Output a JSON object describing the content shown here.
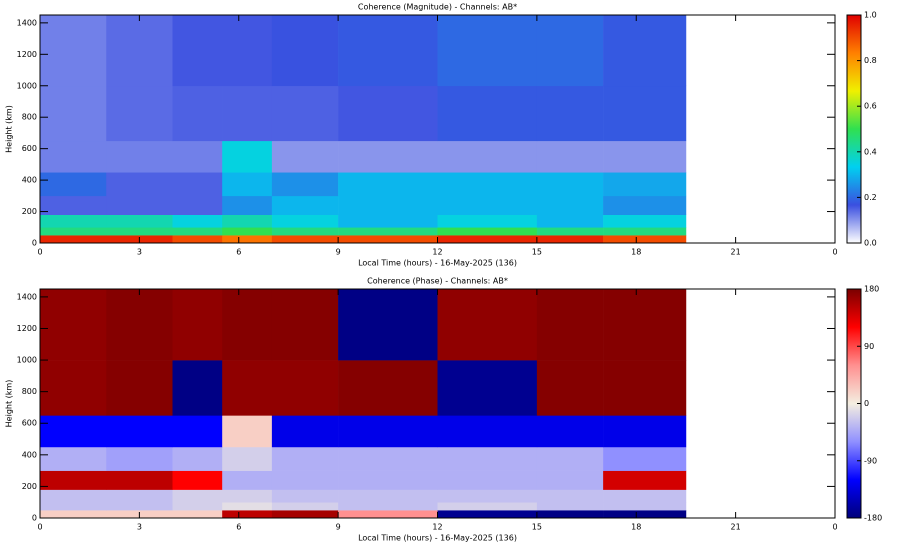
{
  "chart_data": [
    {
      "type": "heatmap",
      "title": "Coherence (Magnitude) - Channels: AB*",
      "xlabel": "Local Time (hours) - 16-May-2025 (136)",
      "ylabel": "Height (km)",
      "xbins": [
        0,
        2,
        4,
        5.5,
        7,
        9,
        12,
        15,
        17,
        19.5
      ],
      "ybins": [
        0,
        50,
        100,
        180,
        300,
        450,
        650,
        1000,
        1450
      ],
      "values": [
        [
          0.95,
          0.95,
          0.9,
          0.85,
          0.9,
          0.9,
          0.95,
          0.95,
          0.9
        ],
        [
          0.45,
          0.45,
          0.45,
          0.5,
          0.45,
          0.45,
          0.5,
          0.45,
          0.45
        ],
        [
          0.4,
          0.4,
          0.35,
          0.4,
          0.35,
          0.3,
          0.35,
          0.3,
          0.35
        ],
        [
          0.15,
          0.15,
          0.15,
          0.25,
          0.3,
          0.3,
          0.3,
          0.3,
          0.25
        ],
        [
          0.2,
          0.15,
          0.15,
          0.3,
          0.25,
          0.3,
          0.3,
          0.3,
          0.28
        ],
        [
          0.12,
          0.12,
          0.12,
          0.35,
          0.1,
          0.1,
          0.1,
          0.1,
          0.1
        ],
        [
          0.12,
          0.14,
          0.15,
          0.15,
          0.15,
          0.16,
          0.18,
          0.18,
          0.18
        ],
        [
          0.12,
          0.14,
          0.16,
          0.16,
          0.17,
          0.18,
          0.2,
          0.2,
          0.18
        ]
      ],
      "xlim": [
        0,
        24
      ],
      "xticks": [
        0,
        3,
        6,
        9,
        12,
        15,
        18,
        21,
        {
          "value": 24,
          "label": "0"
        }
      ],
      "ylim": [
        0,
        1450
      ],
      "yticks": [
        0,
        200,
        400,
        600,
        800,
        1000,
        1200,
        1400
      ],
      "clim": [
        0,
        1
      ],
      "cticks": [
        {
          "value": 0,
          "label": "0.0"
        },
        {
          "value": 0.2,
          "label": "0.2"
        },
        {
          "value": 0.4,
          "label": "0.4"
        },
        {
          "value": 0.6,
          "label": "0.6"
        },
        {
          "value": 0.8,
          "label": "0.8"
        },
        {
          "value": 1,
          "label": "1.0"
        }
      ],
      "colormap": [
        "#ffffff",
        "#3a4fe0",
        "#00d0f0",
        "#30e050",
        "#f0f000",
        "#ff8000",
        "#e00000"
      ]
    },
    {
      "type": "heatmap",
      "title": "Coherence (Phase) - Channels: AB*",
      "xlabel": "Local Time (hours) - 16-May-2025 (136)",
      "ylabel": "Height (km)",
      "xbins": [
        0,
        2,
        4,
        5.5,
        7,
        9,
        12,
        15,
        17,
        19.5
      ],
      "ybins": [
        0,
        50,
        100,
        180,
        300,
        450,
        650,
        1000,
        1450
      ],
      "values": [
        [
          20,
          20,
          20,
          150,
          160,
          60,
          -170,
          -175,
          -175
        ],
        [
          -30,
          -30,
          -20,
          -10,
          -20,
          -30,
          -20,
          -30,
          -30
        ],
        [
          -30,
          -30,
          -20,
          -20,
          -30,
          -30,
          -30,
          -30,
          -30
        ],
        [
          150,
          150,
          120,
          -40,
          -40,
          -40,
          -40,
          -40,
          140
        ],
        [
          -40,
          -50,
          -40,
          -20,
          -40,
          -40,
          -40,
          -40,
          -60
        ],
        [
          -120,
          -120,
          -120,
          20,
          -130,
          -130,
          -130,
          -130,
          -130
        ],
        [
          170,
          175,
          -175,
          170,
          170,
          175,
          -170,
          175,
          175
        ],
        [
          170,
          175,
          170,
          175,
          175,
          -175,
          170,
          175,
          175
        ]
      ],
      "xlim": [
        0,
        24
      ],
      "xticks": [
        0,
        3,
        6,
        9,
        12,
        15,
        18,
        21,
        {
          "value": 24,
          "label": "0"
        }
      ],
      "ylim": [
        0,
        1450
      ],
      "yticks": [
        0,
        200,
        400,
        600,
        800,
        1000,
        1200,
        1400
      ],
      "clim": [
        -180,
        180
      ],
      "cticks": [
        -180,
        -90,
        0,
        90,
        180
      ],
      "colormap": [
        "#00007a",
        "#0000ff",
        "#9090ff",
        "#f4eee0",
        "#ff9090",
        "#ff0000",
        "#7a0000"
      ]
    }
  ]
}
